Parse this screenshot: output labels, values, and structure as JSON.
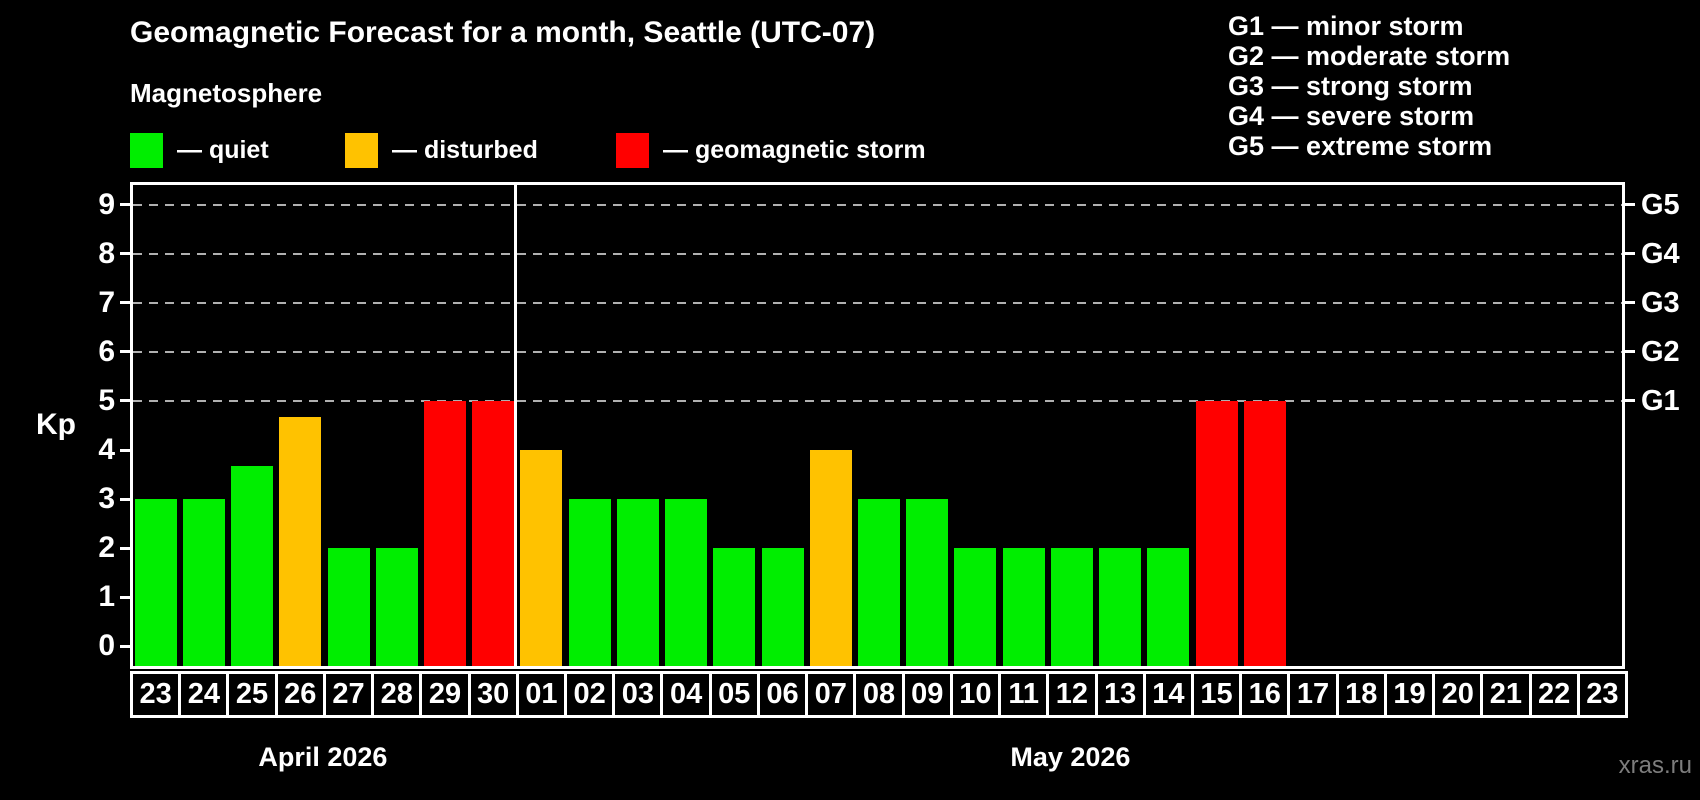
{
  "title": "Geomagnetic Forecast for a month, Seattle (UTC-07)",
  "subtitle": "Magnetosphere",
  "legend": {
    "items": [
      {
        "label": "— quiet",
        "level": "quiet",
        "color": "#00ee00"
      },
      {
        "label": "— disturbed",
        "level": "disturbed",
        "color": "#ffc200"
      },
      {
        "label": "— geomagnetic storm",
        "level": "storm",
        "color": "#ff0000"
      }
    ]
  },
  "storm_scale": [
    "G1 — minor storm",
    "G2 — moderate storm",
    "G3 — strong storm",
    "G4 — severe storm",
    "G5 — extreme storm"
  ],
  "watermark": "xras.ru",
  "chart_data": {
    "type": "bar",
    "title": "Geomagnetic Forecast for a month, Seattle (UTC-07)",
    "subtitle": "Magnetosphere",
    "ylabel": "Kp",
    "ylim": [
      -0.4,
      9.4
    ],
    "yticks": [
      0,
      1,
      2,
      3,
      4,
      5,
      6,
      7,
      8,
      9
    ],
    "grid_kp": [
      5,
      6,
      7,
      8,
      9
    ],
    "grid": true,
    "legend_position": "top",
    "right_axis": [
      {
        "kp": 5,
        "label": "G1"
      },
      {
        "kp": 6,
        "label": "G2"
      },
      {
        "kp": 7,
        "label": "G3"
      },
      {
        "kp": 8,
        "label": "G4"
      },
      {
        "kp": 9,
        "label": "G5"
      }
    ],
    "months": [
      {
        "label": "April 2026",
        "days": 8
      },
      {
        "label": "May 2026",
        "days": 23
      }
    ],
    "categories": [
      "23",
      "24",
      "25",
      "26",
      "27",
      "28",
      "29",
      "30",
      "01",
      "02",
      "03",
      "04",
      "05",
      "06",
      "07",
      "08",
      "09",
      "10",
      "11",
      "12",
      "13",
      "14",
      "15",
      "16",
      "17",
      "18",
      "19",
      "20",
      "21",
      "22",
      "23"
    ],
    "values": [
      3,
      3,
      3.67,
      4.67,
      2,
      2,
      5,
      5,
      4,
      3,
      3,
      3,
      2,
      2,
      4,
      3,
      3,
      2,
      2,
      2,
      2,
      2,
      5,
      5,
      null,
      null,
      null,
      null,
      null,
      null,
      null
    ],
    "levels": [
      "quiet",
      "quiet",
      "quiet",
      "disturbed",
      "quiet",
      "quiet",
      "storm",
      "storm",
      "disturbed",
      "quiet",
      "quiet",
      "quiet",
      "quiet",
      "quiet",
      "disturbed",
      "quiet",
      "quiet",
      "quiet",
      "quiet",
      "quiet",
      "quiet",
      "quiet",
      "storm",
      "storm",
      "none",
      "none",
      "none",
      "none",
      "none",
      "none",
      "none"
    ]
  }
}
